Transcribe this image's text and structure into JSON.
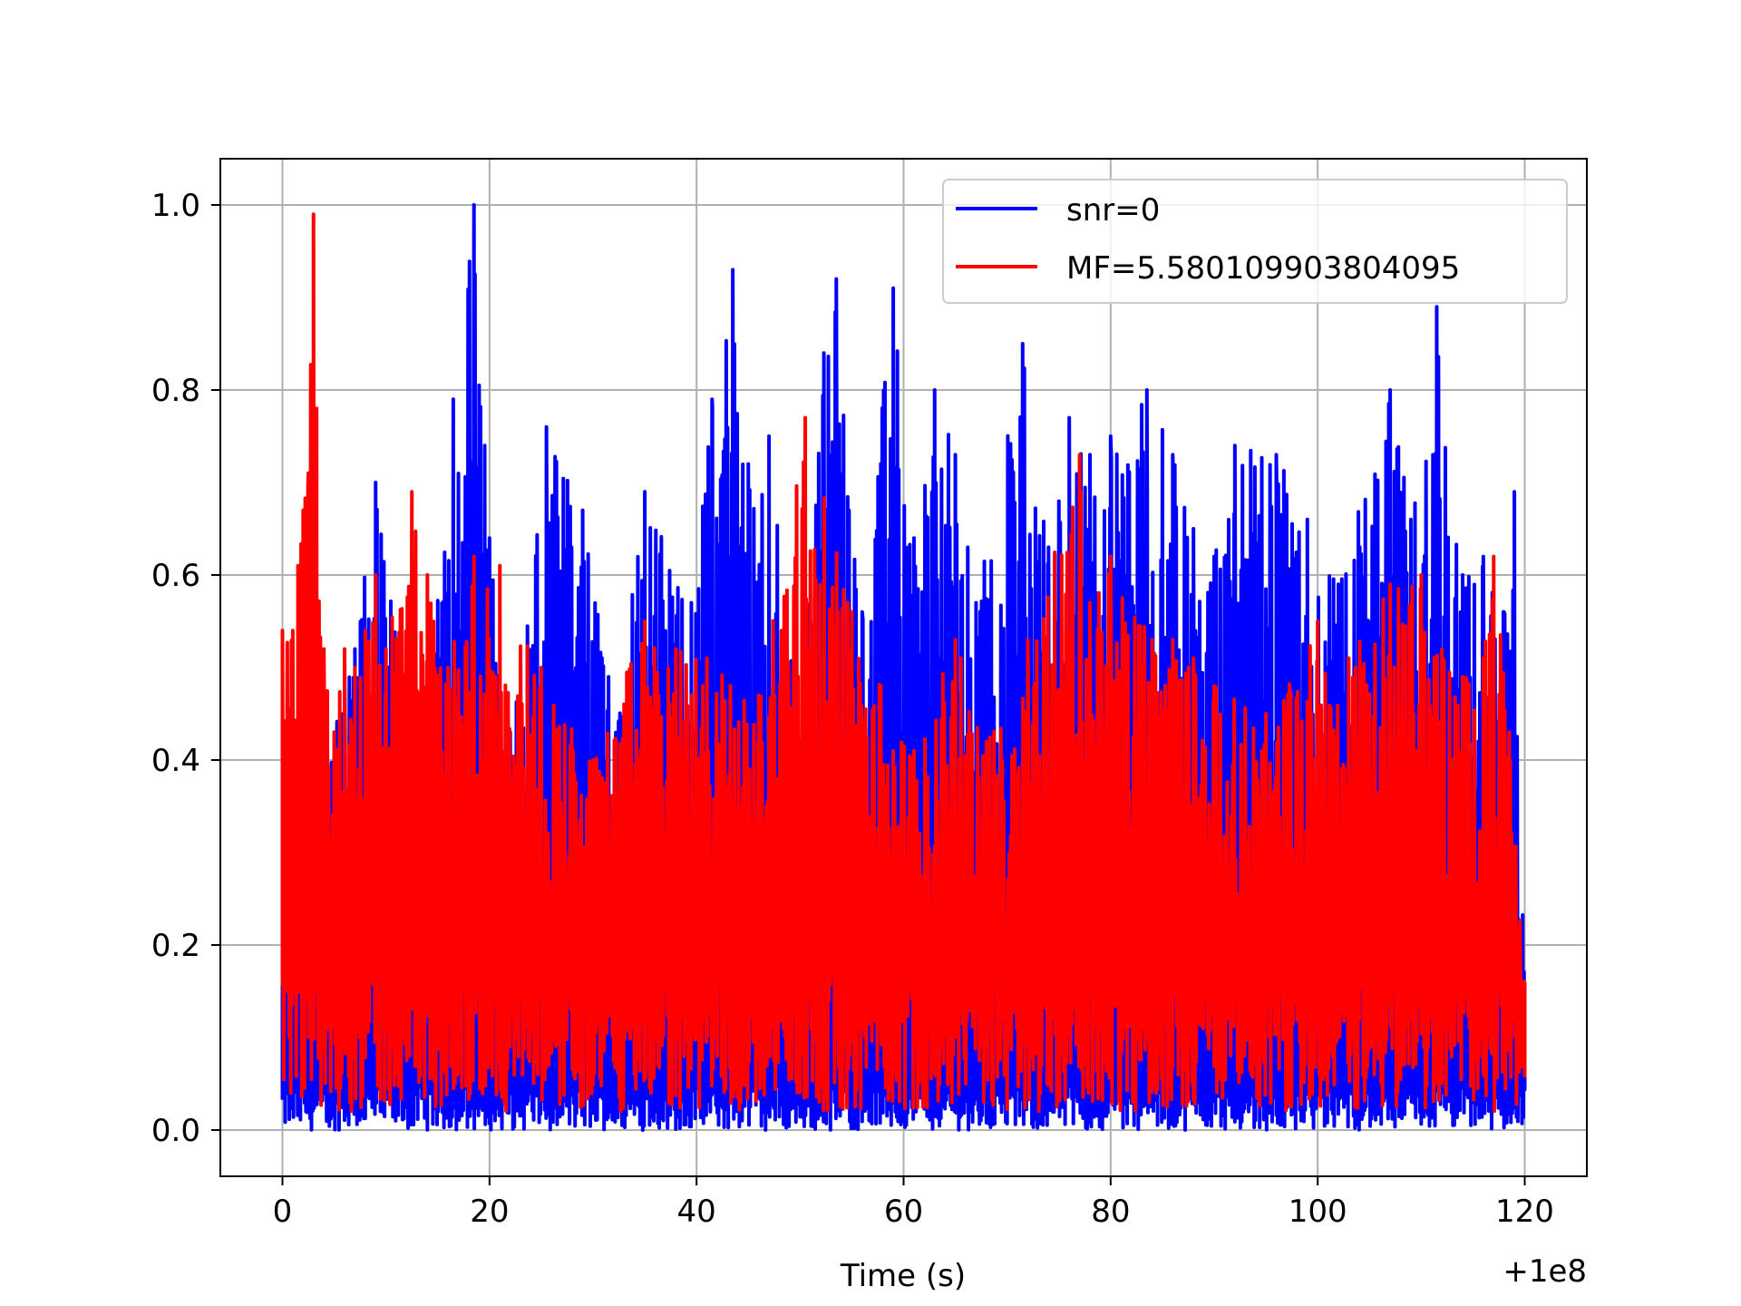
{
  "chart_data": {
    "type": "line",
    "title": "",
    "xlabel": "Time (s)",
    "ylabel": "",
    "x_offset_label": "+1e8",
    "xlim": [
      -6,
      126
    ],
    "ylim": [
      -0.05,
      1.05
    ],
    "xticks": [
      0,
      20,
      40,
      60,
      80,
      100,
      120
    ],
    "xtick_labels": [
      "0",
      "20",
      "40",
      "60",
      "80",
      "100",
      "120"
    ],
    "yticks": [
      0.0,
      0.2,
      0.4,
      0.6,
      0.8,
      1.0
    ],
    "ytick_labels": [
      "0.0",
      "0.2",
      "0.4",
      "0.6",
      "0.8",
      "1.0"
    ],
    "grid": true,
    "legend_position": "top-right",
    "series": [
      {
        "name": "snr=0",
        "color": "#0000ff",
        "x": [
          0,
          2,
          5,
          7,
          9,
          11.5,
          14,
          16.5,
          18.5,
          20,
          22,
          25.5,
          29,
          31.5,
          35,
          39.5,
          41.5,
          43.5,
          45,
          47,
          50,
          52.3,
          53.5,
          56,
          59,
          61,
          63,
          65,
          67,
          71.5,
          74,
          76,
          78,
          80,
          83.5,
          86,
          88,
          90,
          92,
          96,
          99,
          102,
          107,
          109,
          111.5,
          114,
          116,
          118,
          119,
          120
        ],
        "y": [
          0.3,
          0.48,
          0.43,
          0.52,
          0.7,
          0.52,
          0.43,
          0.79,
          1.0,
          0.64,
          0.43,
          0.76,
          0.67,
          0.49,
          0.69,
          0.57,
          0.79,
          0.93,
          0.72,
          0.75,
          0.42,
          0.84,
          0.92,
          0.56,
          0.91,
          0.64,
          0.8,
          0.73,
          0.57,
          0.85,
          0.63,
          0.77,
          0.73,
          0.75,
          0.8,
          0.73,
          0.65,
          0.62,
          0.74,
          0.73,
          0.66,
          0.59,
          0.8,
          0.66,
          0.89,
          0.6,
          0.62,
          0.56,
          0.69,
          0.14
        ]
      },
      {
        "name": "MF=5.580109903804095",
        "color": "#ff0000",
        "x": [
          0,
          1,
          1.5,
          2,
          2.5,
          3,
          3.3,
          4,
          5,
          6,
          7,
          8,
          9,
          10,
          12.5,
          14,
          16,
          18.5,
          21,
          25,
          30,
          35,
          38,
          41,
          46,
          50.5,
          55,
          61,
          65,
          68,
          72,
          77,
          78,
          80,
          84,
          86,
          88,
          90,
          95,
          100,
          103,
          107,
          110,
          112,
          114,
          116,
          117,
          118.5,
          120
        ],
        "y": [
          0.54,
          0.54,
          0.61,
          0.67,
          0.71,
          0.99,
          0.78,
          0.52,
          0.43,
          0.52,
          0.5,
          0.54,
          0.6,
          0.52,
          0.69,
          0.6,
          0.5,
          0.62,
          0.61,
          0.5,
          0.4,
          0.55,
          0.52,
          0.51,
          0.47,
          0.77,
          0.56,
          0.41,
          0.53,
          0.42,
          0.53,
          0.73,
          0.57,
          0.62,
          0.53,
          0.53,
          0.51,
          0.48,
          0.45,
          0.55,
          0.51,
          0.59,
          0.6,
          0.52,
          0.49,
          0.51,
          0.62,
          0.43,
          0.16
        ]
      }
    ]
  }
}
